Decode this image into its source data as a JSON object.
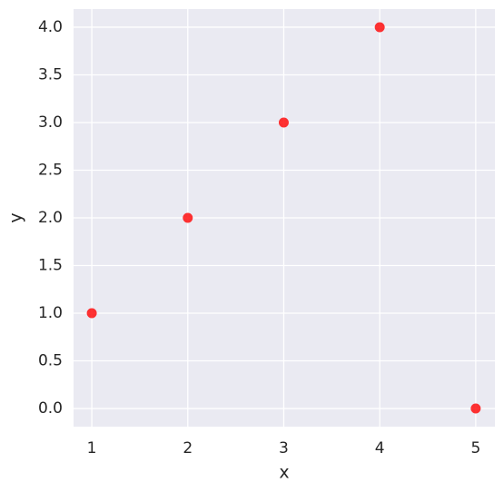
{
  "chart_data": {
    "type": "scatter",
    "x": [
      1,
      2,
      3,
      4,
      5
    ],
    "values": [
      1,
      2,
      3,
      4,
      0
    ],
    "color": "#ff0000",
    "xlabel": "x",
    "ylabel": "y",
    "xlim": [
      0.81,
      5.2
    ],
    "ylim": [
      -0.19,
      4.19
    ],
    "xticks": [
      1,
      2,
      3,
      4,
      5
    ],
    "yticks": [
      {
        "value": 0,
        "label": "0.0"
      },
      {
        "value": 0.5,
        "label": "0.5"
      },
      {
        "value": 1,
        "label": "1.0"
      },
      {
        "value": 1.5,
        "label": "1.5"
      },
      {
        "value": 2,
        "label": "2.0"
      },
      {
        "value": 2.5,
        "label": "2.5"
      },
      {
        "value": 3,
        "label": "3.0"
      },
      {
        "value": 3.5,
        "label": "3.5"
      },
      {
        "value": 4,
        "label": "4.0"
      }
    ],
    "grid": true
  }
}
